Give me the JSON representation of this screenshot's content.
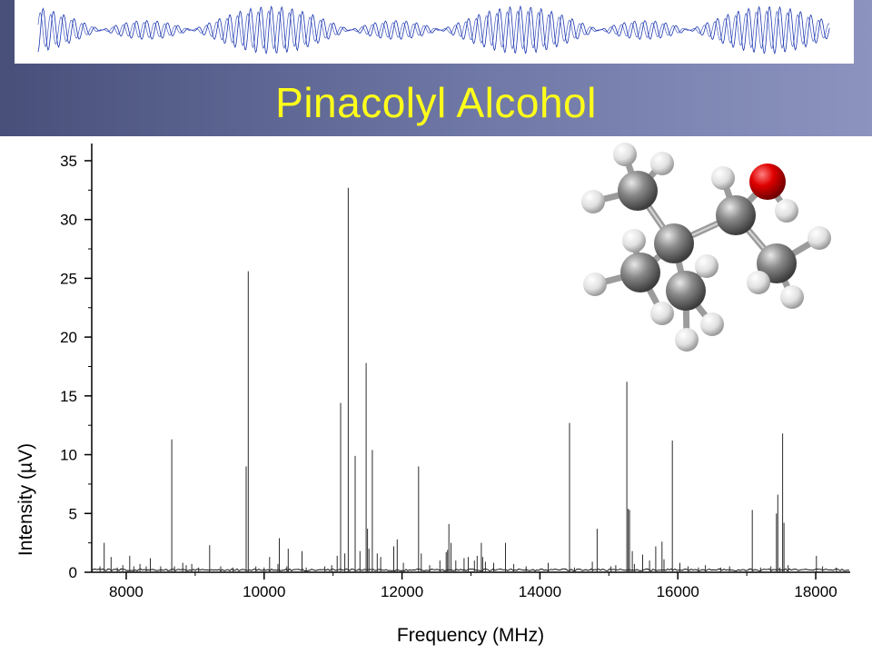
{
  "slide": {
    "title": "Pinacolyl Alcohol",
    "accent_colors": {
      "title": "#ffff1a",
      "header_band": "#5a6190",
      "spectrum": "#1a35b0",
      "oxygen": "#e00000",
      "carbon": "#808080",
      "hydrogen": "#f2f2f2"
    }
  },
  "banner": {
    "type": "free-induction-decay-waveform",
    "color": "#1a35b0"
  },
  "molecule": {
    "type": "ball-and-stick",
    "icon": "pinacolyl-alcohol-3d-model"
  },
  "chart_data": {
    "type": "bar",
    "style": "stick-spectrum",
    "xlabel": "Frequency (MHz)",
    "ylabel": "Intensity (µV)",
    "xlim": [
      7500,
      18500
    ],
    "ylim": [
      0,
      36
    ],
    "xticks": [
      8000,
      10000,
      12000,
      14000,
      16000,
      18000
    ],
    "yticks": [
      0,
      5,
      10,
      15,
      20,
      25,
      30,
      35
    ],
    "xtick_labels": [
      "8000",
      "10000",
      "12000",
      "14000",
      "16000",
      "18000"
    ],
    "ytick_labels": [
      "0",
      "5",
      "10",
      "15",
      "20",
      "25",
      "30",
      "35"
    ],
    "grid": false,
    "x": [
      7620,
      7680,
      7780,
      7870,
      7950,
      8050,
      8110,
      8200,
      8290,
      8350,
      8500,
      8660,
      8700,
      8820,
      8870,
      8950,
      9050,
      9210,
      9370,
      9550,
      9740,
      9770,
      9880,
      10000,
      10080,
      10200,
      10220,
      10330,
      10350,
      10550,
      10610,
      10880,
      10980,
      11060,
      11110,
      11170,
      11220,
      11320,
      11390,
      11480,
      11500,
      11520,
      11570,
      11640,
      11690,
      11880,
      11930,
      12020,
      12240,
      12280,
      12400,
      12550,
      12640,
      12660,
      12680,
      12710,
      12780,
      12900,
      12960,
      13050,
      13090,
      13150,
      13170,
      13210,
      13330,
      13500,
      13620,
      13800,
      14120,
      14430,
      14500,
      14760,
      14830,
      15030,
      15100,
      15260,
      15280,
      15300,
      15340,
      15370,
      15490,
      15590,
      15680,
      15770,
      15800,
      15920,
      16030,
      16150,
      16300,
      16400,
      16620,
      16750,
      17080,
      17200,
      17350,
      17430,
      17450,
      17480,
      17520,
      17540,
      17600,
      18010,
      18100,
      18300
    ],
    "values": [
      0.5,
      2.5,
      1.3,
      0.4,
      0.6,
      1.4,
      0.5,
      0.7,
      0.5,
      1.2,
      0.5,
      11.3,
      0.5,
      0.8,
      0.6,
      0.7,
      0.4,
      2.3,
      0.5,
      0.4,
      9.0,
      25.6,
      0.5,
      0.4,
      1.3,
      0.7,
      2.9,
      0.5,
      2.0,
      1.8,
      0.4,
      0.5,
      0.6,
      1.4,
      14.4,
      1.6,
      32.7,
      9.9,
      1.8,
      17.8,
      3.7,
      2.0,
      10.4,
      1.6,
      1.3,
      2.2,
      2.8,
      0.8,
      9.0,
      1.6,
      0.6,
      1.0,
      1.7,
      1.9,
      4.1,
      2.5,
      1.0,
      1.2,
      1.3,
      1.0,
      1.4,
      2.5,
      1.3,
      0.9,
      0.8,
      2.5,
      0.7,
      0.5,
      0.8,
      12.7,
      0.4,
      0.9,
      3.7,
      0.5,
      0.6,
      16.2,
      5.4,
      5.3,
      1.8,
      0.7,
      1.5,
      1.0,
      2.2,
      2.6,
      1.1,
      11.2,
      0.8,
      0.5,
      0.4,
      0.6,
      0.4,
      0.5,
      5.3,
      0.4,
      0.5,
      5.0,
      6.6,
      0.4,
      11.8,
      4.2,
      0.6,
      1.4,
      0.5,
      0.4
    ]
  }
}
